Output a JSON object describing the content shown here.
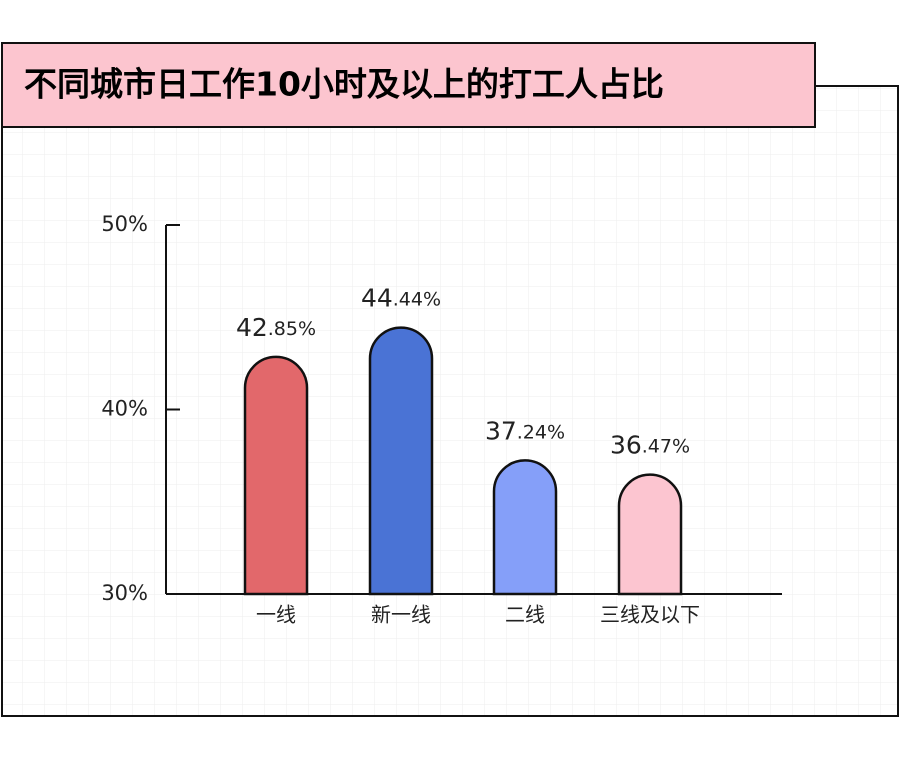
{
  "chart_data": {
    "type": "bar",
    "title": "不同城市日工作10小时及以上的打工人占比",
    "categories": [
      "一线",
      "新一线",
      "二线",
      "三线及以下"
    ],
    "values": [
      42.85,
      44.44,
      37.24,
      36.47
    ],
    "value_labels": [
      "42.85%",
      "44.44%",
      "37.24%",
      "36.47%"
    ],
    "colors": [
      "#e2686b",
      "#4a73d5",
      "#859ff9",
      "#fcc5d0"
    ],
    "ylim": [
      30,
      50
    ],
    "yticks": [
      {
        "value": 30,
        "label": "30%"
      },
      {
        "value": 40,
        "label": "40%"
      },
      {
        "value": 50,
        "label": "50%"
      }
    ]
  }
}
